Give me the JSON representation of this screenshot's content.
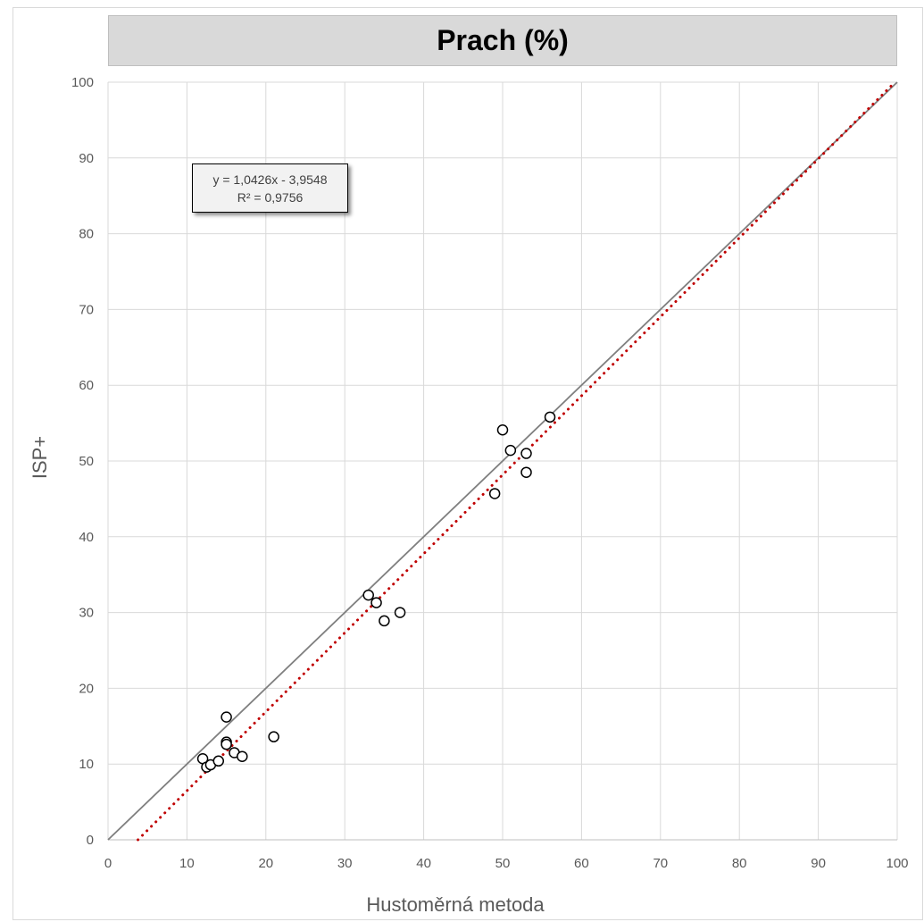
{
  "chart_data": {
    "type": "scatter",
    "title": "Prach (%)",
    "xlabel": "Hustoměrná metoda",
    "ylabel": "ISP+",
    "xlim": [
      0,
      100
    ],
    "ylim": [
      0,
      100
    ],
    "xticks": [
      0,
      10,
      20,
      30,
      40,
      50,
      60,
      70,
      80,
      90,
      100
    ],
    "yticks": [
      0,
      10,
      20,
      30,
      40,
      50,
      60,
      70,
      80,
      90,
      100
    ],
    "grid": true,
    "points": [
      {
        "x": 12,
        "y": 10.7
      },
      {
        "x": 12.5,
        "y": 9.6
      },
      {
        "x": 13,
        "y": 9.9
      },
      {
        "x": 14,
        "y": 10.4
      },
      {
        "x": 15,
        "y": 16.2
      },
      {
        "x": 15,
        "y": 12.9
      },
      {
        "x": 15,
        "y": 12.6
      },
      {
        "x": 16,
        "y": 11.5
      },
      {
        "x": 17,
        "y": 11.0
      },
      {
        "x": 21,
        "y": 13.6
      },
      {
        "x": 33,
        "y": 32.3
      },
      {
        "x": 34,
        "y": 31.3
      },
      {
        "x": 35,
        "y": 28.9
      },
      {
        "x": 37,
        "y": 30.0
      },
      {
        "x": 49,
        "y": 45.7
      },
      {
        "x": 50,
        "y": 54.1
      },
      {
        "x": 51,
        "y": 51.4
      },
      {
        "x": 53,
        "y": 51.0
      },
      {
        "x": 53,
        "y": 48.5
      },
      {
        "x": 56,
        "y": 55.8
      }
    ],
    "reference_line": {
      "slope": 1,
      "intercept": 0,
      "color": "#7f7f7f"
    },
    "trendline": {
      "slope": 1.0426,
      "intercept": -3.9548,
      "color": "#c00000",
      "style": "dotted"
    },
    "equation_label": "y = 1,0426x - 3,9548",
    "r2_label": "R² = 0,9756"
  }
}
